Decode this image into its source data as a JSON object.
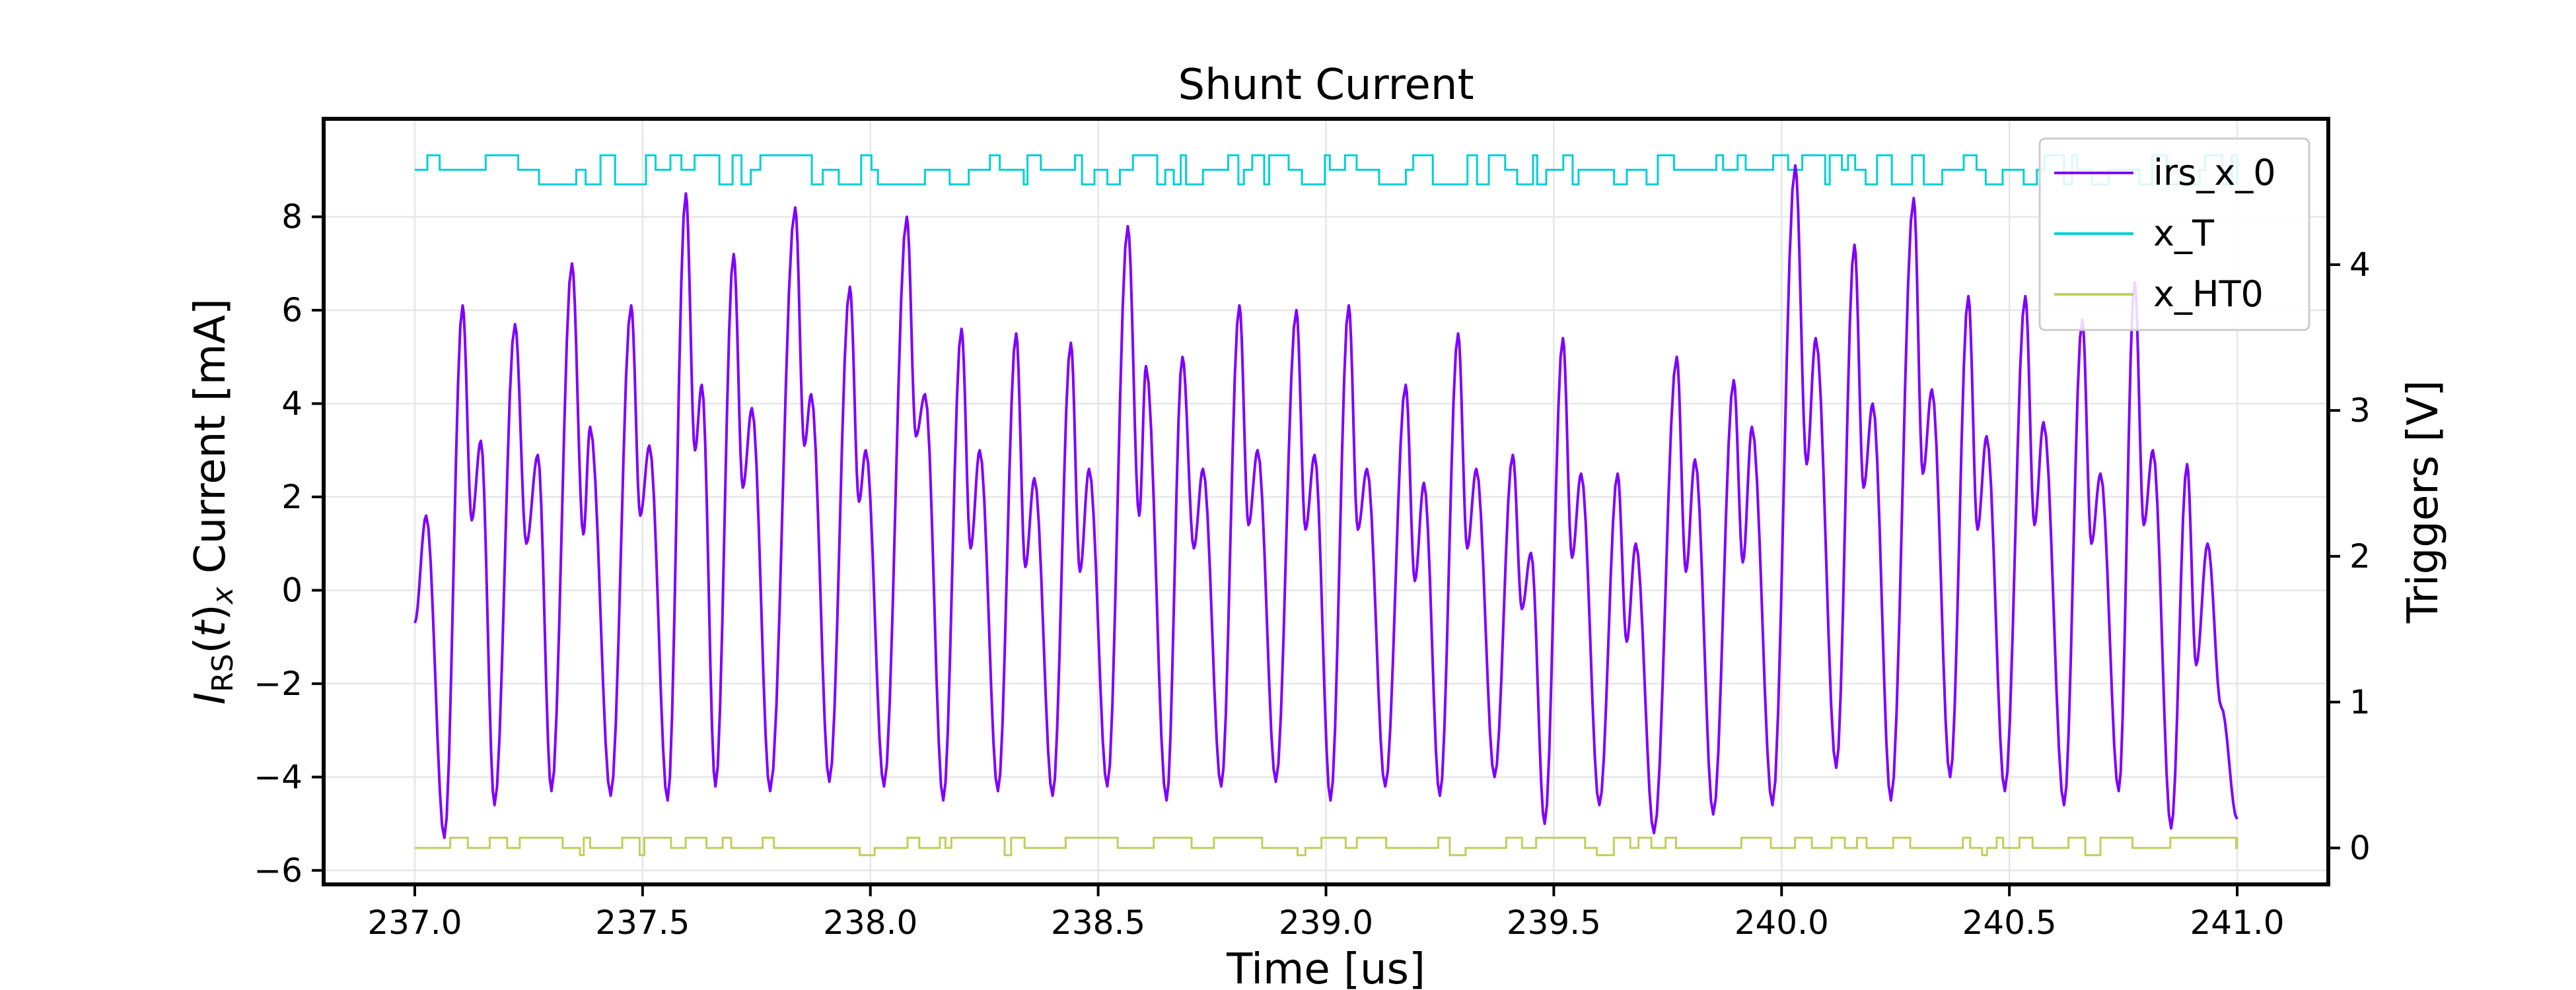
{
  "chart_data": {
    "type": "line",
    "title": "Shunt Current",
    "xlabel": "Time [us]",
    "ylabel_main": "I",
    "ylabel_sub": "RS",
    "ylabel_paren_open": "(",
    "ylabel_t": "t",
    "ylabel_paren_close": ")",
    "ylabel_sub2": "x",
    "ylabel_rest": " Current [mA]",
    "y2label": "Triggers [V]",
    "xlim": [
      236.8,
      241.2
    ],
    "ylim": [
      -6.3,
      10.1
    ],
    "y2lim": [
      -0.25,
      5.0
    ],
    "xticks": [
      237.0,
      237.5,
      238.0,
      238.5,
      239.0,
      239.5,
      240.0,
      240.5,
      241.0
    ],
    "xtick_labels": [
      "237.0",
      "237.5",
      "238.0",
      "238.5",
      "239.0",
      "239.5",
      "240.0",
      "240.5",
      "241.0"
    ],
    "yticks": [
      -6,
      -4,
      -2,
      0,
      2,
      4,
      6,
      8
    ],
    "ytick_labels": [
      "−6",
      "−4",
      "−2",
      "0",
      "2",
      "4",
      "6",
      "8"
    ],
    "y2ticks": [
      0,
      1,
      2,
      3,
      4
    ],
    "y2tick_labels": [
      "0",
      "1",
      "2",
      "3",
      "4"
    ],
    "grid": true,
    "legend_position": "upper right",
    "series": [
      {
        "name": "irs_x_0",
        "axis": "left",
        "color": "#7f00ff",
        "peaks": [
          {
            "x": 237.025,
            "y": 1.6
          },
          {
            "x": 237.065,
            "y": -5.3
          },
          {
            "x": 237.105,
            "y": 6.1
          },
          {
            "x": 237.125,
            "y": 1.5
          },
          {
            "x": 237.145,
            "y": 3.2
          },
          {
            "x": 237.175,
            "y": -4.6
          },
          {
            "x": 237.22,
            "y": 5.7
          },
          {
            "x": 237.245,
            "y": 1.0
          },
          {
            "x": 237.27,
            "y": 2.9
          },
          {
            "x": 237.3,
            "y": -4.3
          },
          {
            "x": 237.345,
            "y": 7.0
          },
          {
            "x": 237.37,
            "y": 1.2
          },
          {
            "x": 237.385,
            "y": 3.5
          },
          {
            "x": 237.43,
            "y": -4.4
          },
          {
            "x": 237.475,
            "y": 6.1
          },
          {
            "x": 237.495,
            "y": 1.6
          },
          {
            "x": 237.515,
            "y": 3.1
          },
          {
            "x": 237.555,
            "y": -4.5
          },
          {
            "x": 237.595,
            "y": 8.5
          },
          {
            "x": 237.615,
            "y": 3.0
          },
          {
            "x": 237.63,
            "y": 4.4
          },
          {
            "x": 237.66,
            "y": -4.2
          },
          {
            "x": 237.7,
            "y": 7.2
          },
          {
            "x": 237.72,
            "y": 2.2
          },
          {
            "x": 237.74,
            "y": 3.9
          },
          {
            "x": 237.78,
            "y": -4.3
          },
          {
            "x": 237.835,
            "y": 8.2
          },
          {
            "x": 237.855,
            "y": 3.1
          },
          {
            "x": 237.87,
            "y": 4.2
          },
          {
            "x": 237.91,
            "y": -4.1
          },
          {
            "x": 237.955,
            "y": 6.5
          },
          {
            "x": 237.975,
            "y": 1.9
          },
          {
            "x": 237.99,
            "y": 3.0
          },
          {
            "x": 238.03,
            "y": -4.2
          },
          {
            "x": 238.08,
            "y": 8.0
          },
          {
            "x": 238.1,
            "y": 3.3
          },
          {
            "x": 238.12,
            "y": 4.2
          },
          {
            "x": 238.16,
            "y": -4.5
          },
          {
            "x": 238.2,
            "y": 5.6
          },
          {
            "x": 238.22,
            "y": 0.9
          },
          {
            "x": 238.24,
            "y": 3.0
          },
          {
            "x": 238.28,
            "y": -4.3
          },
          {
            "x": 238.32,
            "y": 5.5
          },
          {
            "x": 238.34,
            "y": 0.5
          },
          {
            "x": 238.36,
            "y": 2.4
          },
          {
            "x": 238.4,
            "y": -4.4
          },
          {
            "x": 238.44,
            "y": 5.3
          },
          {
            "x": 238.46,
            "y": 0.4
          },
          {
            "x": 238.48,
            "y": 2.6
          },
          {
            "x": 238.52,
            "y": -4.2
          },
          {
            "x": 238.565,
            "y": 7.8
          },
          {
            "x": 238.59,
            "y": 1.6
          },
          {
            "x": 238.605,
            "y": 4.8
          },
          {
            "x": 238.65,
            "y": -4.5
          },
          {
            "x": 238.685,
            "y": 5.0
          },
          {
            "x": 238.71,
            "y": 0.9
          },
          {
            "x": 238.73,
            "y": 2.6
          },
          {
            "x": 238.77,
            "y": -4.2
          },
          {
            "x": 238.81,
            "y": 6.1
          },
          {
            "x": 238.83,
            "y": 1.4
          },
          {
            "x": 238.85,
            "y": 3.0
          },
          {
            "x": 238.89,
            "y": -4.1
          },
          {
            "x": 238.935,
            "y": 6.0
          },
          {
            "x": 238.955,
            "y": 1.3
          },
          {
            "x": 238.975,
            "y": 2.9
          },
          {
            "x": 239.01,
            "y": -4.5
          },
          {
            "x": 239.05,
            "y": 6.1
          },
          {
            "x": 239.07,
            "y": 1.3
          },
          {
            "x": 239.09,
            "y": 2.6
          },
          {
            "x": 239.13,
            "y": -4.2
          },
          {
            "x": 239.175,
            "y": 4.4
          },
          {
            "x": 239.195,
            "y": 0.2
          },
          {
            "x": 239.215,
            "y": 2.3
          },
          {
            "x": 239.25,
            "y": -4.4
          },
          {
            "x": 239.29,
            "y": 5.5
          },
          {
            "x": 239.31,
            "y": 0.9
          },
          {
            "x": 239.33,
            "y": 2.6
          },
          {
            "x": 239.37,
            "y": -4.0
          },
          {
            "x": 239.41,
            "y": 2.9
          },
          {
            "x": 239.43,
            "y": -0.4
          },
          {
            "x": 239.45,
            "y": 0.8
          },
          {
            "x": 239.48,
            "y": -5.0
          },
          {
            "x": 239.52,
            "y": 5.4
          },
          {
            "x": 239.54,
            "y": 0.7
          },
          {
            "x": 239.56,
            "y": 2.5
          },
          {
            "x": 239.6,
            "y": -4.6
          },
          {
            "x": 239.64,
            "y": 2.5
          },
          {
            "x": 239.66,
            "y": -1.1
          },
          {
            "x": 239.68,
            "y": 1.0
          },
          {
            "x": 239.72,
            "y": -5.2
          },
          {
            "x": 239.77,
            "y": 5.0
          },
          {
            "x": 239.79,
            "y": 0.4
          },
          {
            "x": 239.81,
            "y": 2.8
          },
          {
            "x": 239.85,
            "y": -4.8
          },
          {
            "x": 239.895,
            "y": 4.5
          },
          {
            "x": 239.915,
            "y": 0.6
          },
          {
            "x": 239.935,
            "y": 3.5
          },
          {
            "x": 239.98,
            "y": -4.6
          },
          {
            "x": 240.03,
            "y": 9.1
          },
          {
            "x": 240.055,
            "y": 2.7
          },
          {
            "x": 240.075,
            "y": 5.4
          },
          {
            "x": 240.12,
            "y": -3.8
          },
          {
            "x": 240.16,
            "y": 7.4
          },
          {
            "x": 240.18,
            "y": 2.2
          },
          {
            "x": 240.2,
            "y": 4.0
          },
          {
            "x": 240.24,
            "y": -4.5
          },
          {
            "x": 240.29,
            "y": 8.4
          },
          {
            "x": 240.31,
            "y": 2.5
          },
          {
            "x": 240.33,
            "y": 4.3
          },
          {
            "x": 240.37,
            "y": -4.0
          },
          {
            "x": 240.41,
            "y": 6.3
          },
          {
            "x": 240.43,
            "y": 1.3
          },
          {
            "x": 240.45,
            "y": 3.3
          },
          {
            "x": 240.49,
            "y": -4.3
          },
          {
            "x": 240.535,
            "y": 6.3
          },
          {
            "x": 240.555,
            "y": 1.4
          },
          {
            "x": 240.575,
            "y": 3.6
          },
          {
            "x": 240.62,
            "y": -4.6
          },
          {
            "x": 240.66,
            "y": 5.8
          },
          {
            "x": 240.68,
            "y": 1.0
          },
          {
            "x": 240.7,
            "y": 2.5
          },
          {
            "x": 240.74,
            "y": -4.3
          },
          {
            "x": 240.775,
            "y": 6.6
          },
          {
            "x": 240.795,
            "y": 1.4
          },
          {
            "x": 240.815,
            "y": 3.0
          },
          {
            "x": 240.855,
            "y": -5.1
          },
          {
            "x": 240.89,
            "y": 2.7
          },
          {
            "x": 240.91,
            "y": -1.6
          },
          {
            "x": 240.935,
            "y": 1.0
          },
          {
            "x": 240.965,
            "y": -2.5
          },
          {
            "x": 241.0,
            "y": -4.9
          }
        ],
        "start": {
          "x": 237.0,
          "y": -0.7
        }
      },
      {
        "name": "x_T",
        "axis": "right",
        "color": "#00cfd9",
        "base_level": 4.65,
        "high_level": 4.75,
        "low_level": 4.55
      },
      {
        "name": "x_HT0",
        "axis": "right",
        "color": "#bfcf5a",
        "base_level": 0.0,
        "high_level": 0.07,
        "low_level": -0.05
      }
    ]
  }
}
